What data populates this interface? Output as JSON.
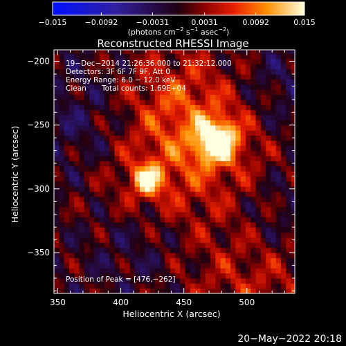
{
  "colorbar": {
    "tick_labels": [
      "−0.015",
      "−0.0092",
      "−0.0031",
      "0.0031",
      "0.0092",
      "0.015"
    ],
    "tick_values": [
      -0.015,
      -0.0092,
      -0.0031,
      0.0031,
      0.0092,
      0.015
    ],
    "units": [
      "(photons cm",
      "−2",
      " s",
      "−1",
      " asec",
      "−2",
      ")"
    ]
  },
  "image": {
    "title": "Reconstructed RHESSI Image",
    "info_lines": [
      "19−Dec−2014 21:26:36.000 to 21:32:12.000",
      "Detectors: 3F 6F 7F 9F, Att 0",
      "Energy Range: 6.0 − 12.0 keV"
    ],
    "clean_label": "Clean",
    "total_counts_label": "Total counts: 1.69E+04",
    "peak_label": "Position of Peak = [476,−262]"
  },
  "axes": {
    "xlabel": "Heliocentric X (arcsec)",
    "ylabel": "Heliocentric Y (arcsec)",
    "x_ticks": [
      350,
      400,
      450,
      500
    ],
    "y_ticks": [
      -200,
      -250,
      -300,
      -350
    ],
    "x_tick_labels": [
      "350",
      "400",
      "450",
      "500"
    ],
    "y_tick_labels": [
      "−200",
      "−250",
      "−300",
      "−350"
    ],
    "xlim": [
      347,
      538
    ],
    "ylim": [
      -382,
      -191
    ]
  },
  "sources": [
    {
      "x": 476,
      "y": -262,
      "peak": 0.015
    },
    {
      "x": 421,
      "y": -293,
      "peak": 0.011
    }
  ],
  "footer": {
    "date": "20−May−2022 20:18"
  }
}
